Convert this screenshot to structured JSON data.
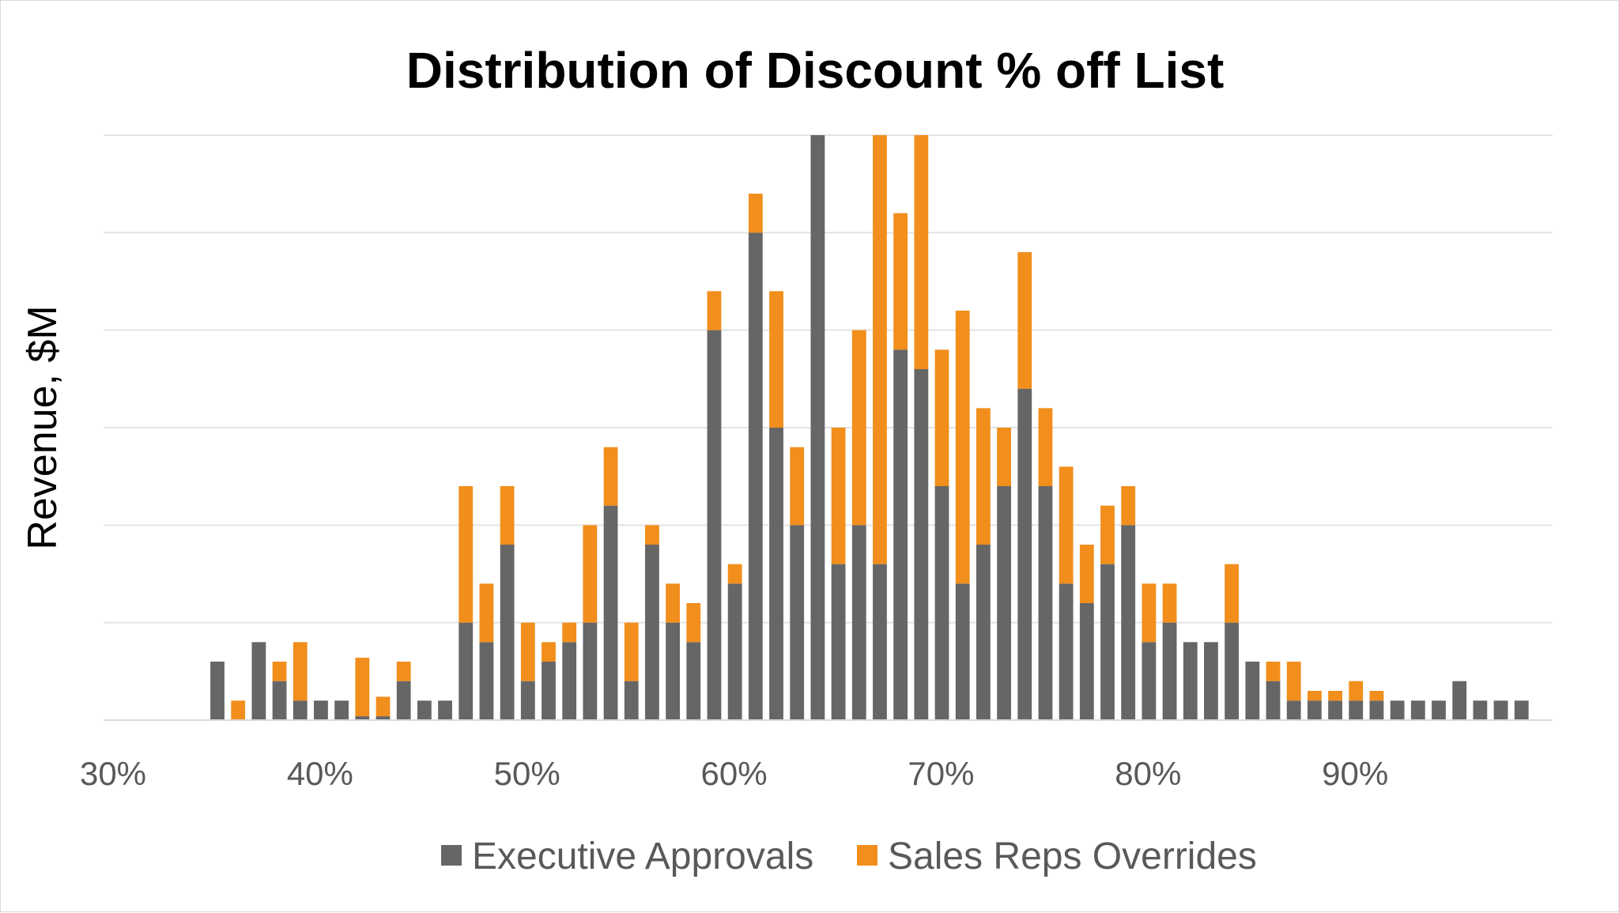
{
  "chart_data": {
    "type": "bar",
    "stacked": true,
    "title": "Distribution of Discount % off List",
    "xlabel": "",
    "ylabel": "Revenue, $M",
    "y_tick_labels_shown": false,
    "grid": true,
    "ylim": [
      0,
      30
    ],
    "x_tick_labels": [
      "30%",
      "40%",
      "50%",
      "60%",
      "70%",
      "80%",
      "90%"
    ],
    "x_tick_values": [
      30,
      40,
      50,
      60,
      70,
      80,
      90
    ],
    "xlim": [
      30,
      100
    ],
    "categories": [
      36,
      37,
      38,
      39,
      40,
      41,
      42,
      43,
      44,
      45,
      46,
      47,
      48,
      49,
      50,
      51,
      52,
      53,
      54,
      55,
      56,
      57,
      58,
      59,
      60,
      61,
      62,
      63,
      64,
      65,
      66,
      67,
      68,
      69,
      70,
      71,
      72,
      73,
      74,
      75,
      76,
      77,
      78,
      79,
      80,
      81,
      82,
      83,
      84,
      85,
      86,
      87,
      88,
      89,
      90,
      91,
      92,
      93,
      94,
      95,
      96,
      97,
      98,
      99
    ],
    "legend_position": "bottom",
    "series": [
      {
        "name": "Executive Approvals",
        "color": "#666666",
        "values": [
          3,
          0,
          4,
          2,
          1,
          1,
          1,
          0.2,
          0.2,
          2,
          1,
          1,
          5,
          4,
          9,
          2,
          3,
          4,
          5,
          11,
          2,
          9,
          5,
          4,
          20,
          7,
          25,
          15,
          10,
          30,
          8,
          10,
          8,
          19,
          18,
          12,
          7,
          9,
          12,
          17,
          12,
          7,
          6,
          8,
          10,
          4,
          5,
          4,
          4,
          5,
          3,
          2,
          1,
          1,
          1,
          1,
          1,
          1,
          1,
          1,
          2,
          1,
          1,
          1
        ]
      },
      {
        "name": "Sales Reps Overrides",
        "color": "#f28e1c",
        "values": [
          0,
          1,
          0,
          1,
          3,
          0,
          0,
          3,
          1,
          1,
          0,
          0,
          7,
          3,
          3,
          3,
          1,
          1,
          5,
          3,
          3,
          1,
          2,
          2,
          2,
          1,
          2,
          7,
          4,
          0,
          7,
          10,
          22,
          7,
          12,
          7,
          14,
          7,
          3,
          7,
          4,
          6,
          3,
          3,
          2,
          3,
          2,
          0,
          0,
          3,
          0,
          1,
          2,
          0.5,
          0.5,
          1,
          0.5,
          0,
          0,
          0,
          0,
          0,
          0,
          0
        ]
      }
    ]
  }
}
